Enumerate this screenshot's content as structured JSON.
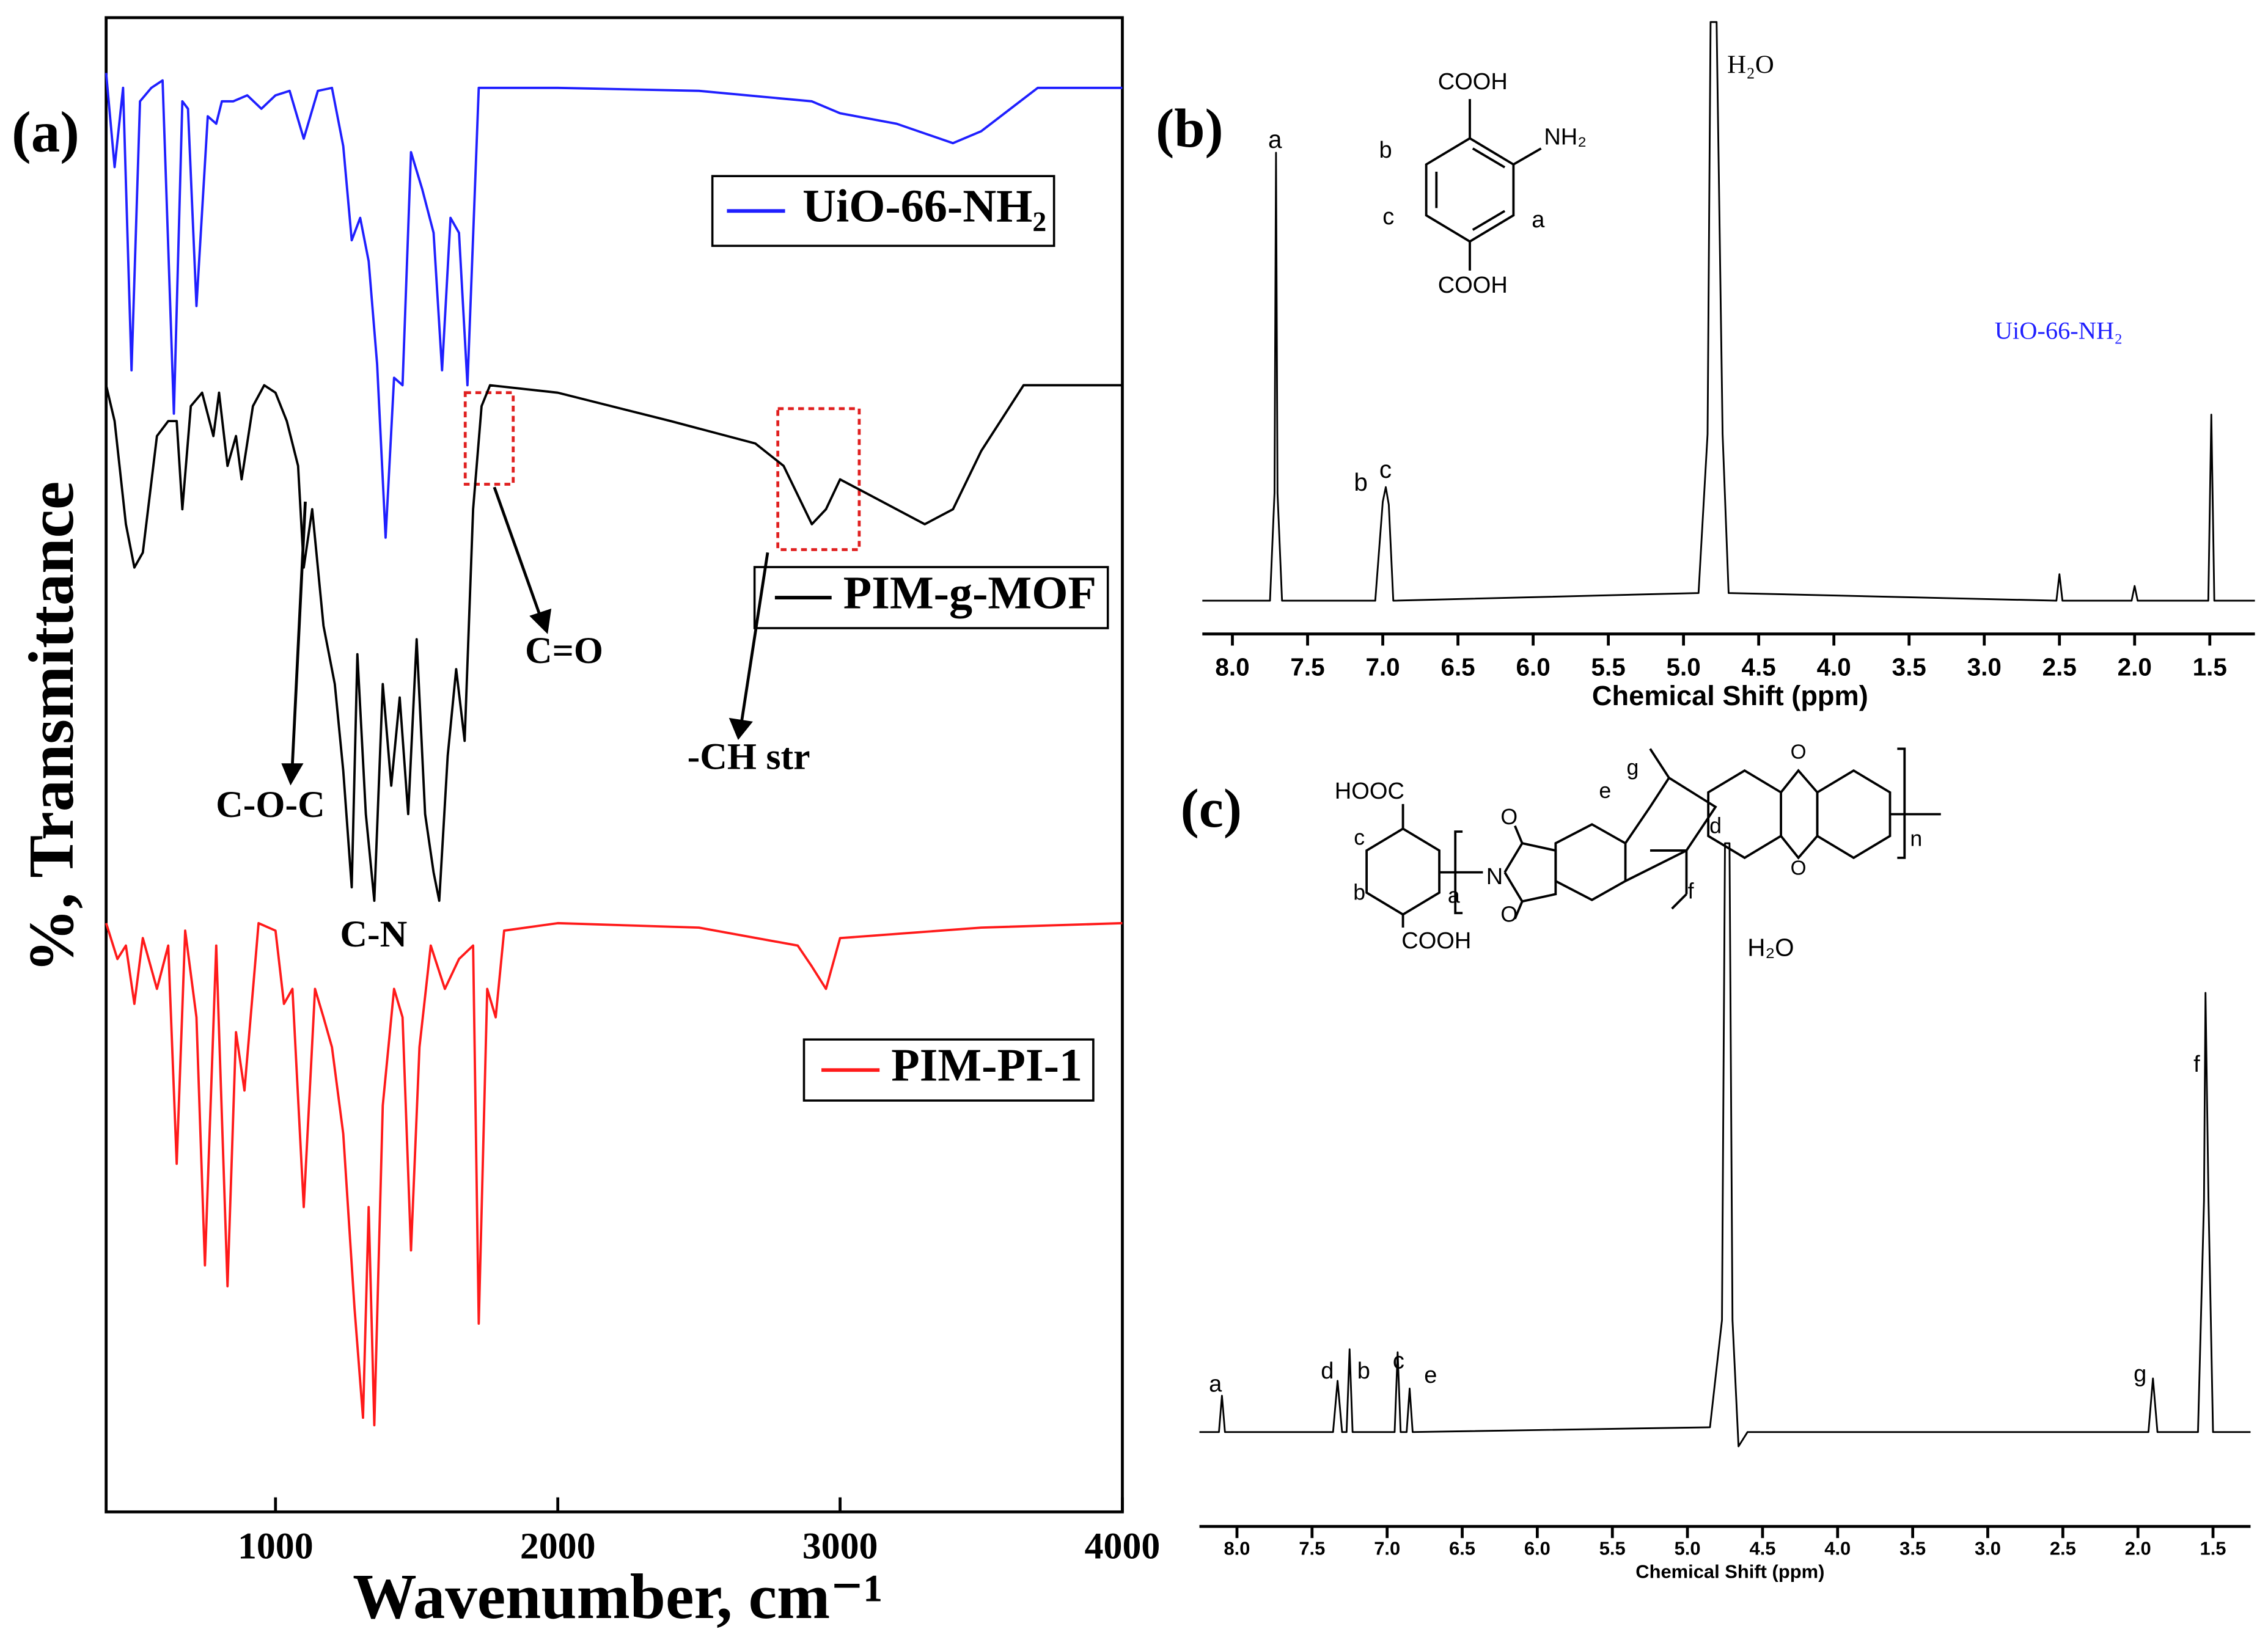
{
  "chart_data": [
    {
      "type": "line",
      "panel_label": "(a)",
      "xlabel": "Wavenumber, cm⁻¹",
      "ylabel": "%, Transmittance",
      "xlim": [
        400,
        4000
      ],
      "ylim": [
        0,
        100
      ],
      "xticks": [
        1000,
        2000,
        3000,
        4000
      ],
      "series": [
        {
          "name": "UiO-66-NH₂",
          "color": "#1f1fff",
          "x": [
            400,
            430,
            460,
            490,
            520,
            560,
            600,
            640,
            670,
            690,
            720,
            760,
            790,
            810,
            850,
            900,
            950,
            1000,
            1050,
            1100,
            1150,
            1200,
            1240,
            1270,
            1300,
            1330,
            1360,
            1390,
            1420,
            1450,
            1480,
            1520,
            1560,
            1590,
            1620,
            1650,
            1680,
            1720,
            1800,
            2000,
            2500,
            2900,
            3000,
            3200,
            3400,
            3500,
            3700,
            4000
          ],
          "values": [
            96.3,
            90.0,
            95.3,
            76.4,
            94.4,
            95.3,
            95.8,
            73.5,
            94.4,
            93.9,
            80.7,
            93.4,
            92.9,
            94.4,
            94.4,
            94.8,
            93.9,
            94.8,
            95.1,
            91.9,
            95.1,
            95.3,
            91.4,
            85.1,
            86.6,
            83.7,
            76.8,
            65.2,
            75.9,
            75.4,
            91.0,
            88.5,
            85.6,
            76.4,
            86.6,
            85.6,
            75.4,
            95.3,
            95.3,
            95.3,
            95.1,
            94.4,
            93.6,
            92.9,
            91.6,
            92.4,
            95.3,
            95.3
          ]
        },
        {
          "name": "PIM-g-MOF",
          "color": "#000000",
          "x": [
            400,
            430,
            470,
            500,
            530,
            580,
            620,
            650,
            670,
            700,
            740,
            780,
            800,
            830,
            860,
            880,
            920,
            960,
            1000,
            1040,
            1080,
            1100,
            1130,
            1170,
            1210,
            1240,
            1270,
            1290,
            1320,
            1350,
            1380,
            1410,
            1440,
            1470,
            1500,
            1530,
            1560,
            1580,
            1610,
            1640,
            1670,
            1700,
            1730,
            1760,
            2000,
            2400,
            2700,
            2800,
            2900,
            2950,
            3000,
            3100,
            3300,
            3400,
            3500,
            3650,
            4000
          ],
          "values": [
            75.4,
            73.0,
            66.1,
            63.2,
            64.2,
            72.0,
            73.0,
            73.0,
            67.1,
            74.0,
            74.9,
            72.0,
            74.9,
            70.0,
            72.0,
            69.1,
            74.0,
            75.4,
            74.9,
            73.0,
            70.0,
            63.2,
            67.1,
            59.3,
            55.4,
            49.6,
            41.8,
            57.4,
            46.7,
            40.9,
            55.4,
            48.6,
            54.5,
            46.7,
            58.4,
            46.7,
            42.8,
            40.9,
            50.6,
            56.4,
            51.6,
            67.1,
            74.0,
            75.4,
            74.9,
            73.0,
            71.5,
            70.0,
            66.1,
            67.1,
            69.1,
            68.1,
            66.1,
            67.1,
            71.0,
            75.4,
            75.4
          ]
        },
        {
          "name": "PIM-PI-1",
          "color": "#ff1a1a",
          "x": [
            400,
            440,
            470,
            500,
            530,
            580,
            620,
            650,
            680,
            720,
            750,
            790,
            830,
            860,
            890,
            940,
            1000,
            1030,
            1060,
            1100,
            1140,
            1170,
            1200,
            1240,
            1280,
            1310,
            1330,
            1350,
            1380,
            1420,
            1450,
            1480,
            1510,
            1550,
            1600,
            1650,
            1700,
            1720,
            1750,
            1780,
            1810,
            2000,
            2500,
            2850,
            2900,
            2950,
            3000,
            3500,
            4000
          ],
          "values": [
            39.4,
            37.0,
            37.9,
            34.0,
            38.4,
            35.0,
            37.9,
            23.3,
            38.9,
            33.1,
            16.5,
            37.9,
            15.1,
            32.1,
            28.2,
            39.4,
            38.9,
            34.0,
            35.0,
            20.4,
            35.0,
            33.1,
            31.1,
            25.3,
            13.6,
            6.3,
            20.4,
            5.8,
            27.2,
            35.0,
            33.1,
            17.5,
            31.1,
            37.9,
            35.0,
            37.0,
            37.9,
            12.6,
            35.0,
            33.1,
            38.9,
            39.4,
            39.1,
            37.9,
            36.5,
            35.0,
            38.4,
            39.1,
            39.4
          ]
        }
      ],
      "annotations": [
        "C=O",
        "-CH str",
        "C-O-C",
        "C-N"
      ]
    },
    {
      "type": "line",
      "panel_label": "(b)",
      "xlabel": "Chemical Shift (ppm)",
      "xlim": [
        8.2,
        1.2
      ],
      "ylim": [
        0,
        100
      ],
      "xticks": [
        {
          "value": 8,
          "label": "8.0"
        },
        {
          "value": 7.5,
          "label": "7.5"
        },
        {
          "value": 7,
          "label": "7.0"
        },
        {
          "value": 6.5,
          "label": "6.5"
        },
        {
          "value": 6,
          "label": "6.0"
        },
        {
          "value": 5.5,
          "label": "5.5"
        },
        {
          "value": 5,
          "label": "5.0"
        },
        {
          "value": 4.5,
          "label": "4.5"
        },
        {
          "value": 4,
          "label": "4.0"
        },
        {
          "value": 3.5,
          "label": "3.5"
        },
        {
          "value": 3,
          "label": "3.0"
        },
        {
          "value": 2.5,
          "label": "2.5"
        },
        {
          "value": 2,
          "label": "2.0"
        },
        {
          "value": 1.5,
          "label": "1.5"
        }
      ],
      "series": [
        {
          "color": "#000000",
          "x": [
            8.2,
            7.75,
            7.72,
            7.71,
            7.7,
            7.67,
            7.05,
            7.0,
            6.98,
            6.96,
            6.93,
            4.9,
            4.84,
            4.82,
            4.78,
            4.74,
            4.7,
            2.52,
            2.5,
            2.48,
            2.02,
            2.0,
            1.98,
            1.51,
            1.49,
            1.47,
            1.2
          ],
          "values": [
            1.7,
            1.7,
            20,
            77.8,
            20,
            1.7,
            1.7,
            18.5,
            21,
            18,
            1.7,
            3,
            30,
            100,
            100,
            30,
            3,
            1.7,
            6.2,
            1.7,
            1.7,
            4.2,
            1.7,
            1.7,
            33.3,
            1.7,
            1.7
          ]
        }
      ],
      "annotations": [
        "a",
        "b",
        "c",
        "H₂O",
        "UiO-66-NH₂"
      ],
      "structure_labels": [
        "COOH",
        "NH₂",
        "b",
        "c",
        "a",
        "COOH"
      ]
    },
    {
      "type": "line",
      "panel_label": "(c)",
      "xlabel": "Chemical Shift (ppm)",
      "xlim": [
        8.25,
        1.25
      ],
      "ylim": [
        0,
        100
      ],
      "xticks": [
        {
          "value": 8,
          "label": "8.0"
        },
        {
          "value": 7.5,
          "label": "7.5"
        },
        {
          "value": 7,
          "label": "7.0"
        },
        {
          "value": 6.5,
          "label": "6.5"
        },
        {
          "value": 6,
          "label": "6.0"
        },
        {
          "value": 5.5,
          "label": "5.5"
        },
        {
          "value": 5,
          "label": "5.0"
        },
        {
          "value": 4.5,
          "label": "4.5"
        },
        {
          "value": 4,
          "label": "4.0"
        },
        {
          "value": 3.5,
          "label": "3.5"
        },
        {
          "value": 3,
          "label": "3.0"
        },
        {
          "value": 2.5,
          "label": "2.5"
        },
        {
          "value": 2,
          "label": "2.0"
        },
        {
          "value": 1.5,
          "label": "1.5"
        }
      ],
      "series": [
        {
          "color": "#000000",
          "x": [
            8.25,
            8.12,
            8.1,
            8.08,
            7.36,
            7.33,
            7.3,
            7.27,
            7.25,
            7.23,
            6.95,
            6.93,
            6.91,
            6.87,
            6.85,
            6.83,
            4.85,
            4.77,
            4.75,
            4.72,
            4.7,
            4.66,
            4.6,
            1.93,
            1.9,
            1.87,
            1.6,
            1.56,
            1.55,
            1.53,
            1.5,
            1.25
          ],
          "values": [
            1.2,
            1.2,
            7.3,
            1.2,
            1.2,
            9.8,
            1.2,
            1.2,
            15.1,
            1.2,
            1.2,
            14.6,
            1.2,
            1.2,
            8.5,
            1.2,
            2,
            20,
            100,
            100,
            20,
            -1.2,
            1.2,
            1.2,
            10.2,
            1.2,
            1.2,
            40,
            74.9,
            40,
            1.2,
            1.2
          ]
        }
      ],
      "annotations": [
        "a",
        "d",
        "b",
        "c",
        "e",
        "H₂O",
        "g",
        "f"
      ],
      "structure_labels": [
        "HOOC",
        "c",
        "b",
        "a",
        "COOH",
        "N",
        "O",
        "O",
        "e",
        "g",
        "f",
        "d",
        "O",
        "O",
        "n"
      ]
    }
  ]
}
